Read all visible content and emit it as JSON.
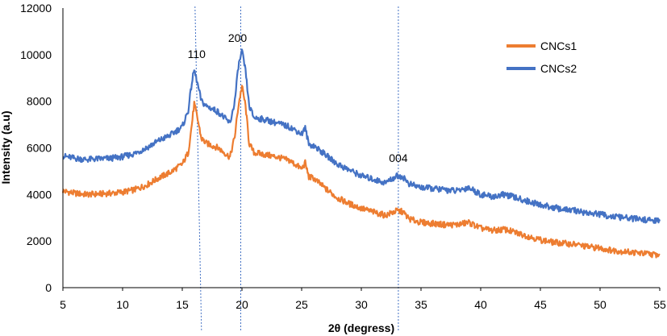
{
  "chart_data": {
    "type": "line",
    "xlabel": "2θ (degress)",
    "ylabel": "Intensity (a.u)",
    "xlim": [
      5,
      55
    ],
    "ylim": [
      0,
      12000
    ],
    "x_ticks": [
      5,
      10,
      15,
      20,
      25,
      30,
      35,
      40,
      45,
      50,
      55
    ],
    "y_ticks": [
      0,
      2000,
      4000,
      6000,
      8000,
      10000,
      12000
    ],
    "grid": false,
    "legend_position": "top-right",
    "series": [
      {
        "name": "CNCs1",
        "color": "#ED7D31",
        "points": [
          [
            5,
            4150
          ],
          [
            6,
            4050
          ],
          [
            7,
            4000
          ],
          [
            8,
            4020
          ],
          [
            9,
            4050
          ],
          [
            10,
            4100
          ],
          [
            11,
            4200
          ],
          [
            12,
            4400
          ],
          [
            13,
            4700
          ],
          [
            14,
            4950
          ],
          [
            15,
            5300
          ],
          [
            15.5,
            5800
          ],
          [
            15.8,
            7000
          ],
          [
            16,
            7900
          ],
          [
            16.3,
            7200
          ],
          [
            16.6,
            6400
          ],
          [
            17,
            6200
          ],
          [
            18,
            6000
          ],
          [
            19,
            5600
          ],
          [
            19.4,
            6500
          ],
          [
            19.7,
            7800
          ],
          [
            20,
            8650
          ],
          [
            20.3,
            7800
          ],
          [
            20.6,
            6200
          ],
          [
            21,
            5800
          ],
          [
            22,
            5700
          ],
          [
            23,
            5600
          ],
          [
            24,
            5450
          ],
          [
            25,
            5100
          ],
          [
            25.3,
            5350
          ],
          [
            25.6,
            4750
          ],
          [
            26,
            4700
          ],
          [
            27,
            4250
          ],
          [
            28,
            3850
          ],
          [
            29,
            3600
          ],
          [
            30,
            3400
          ],
          [
            31,
            3250
          ],
          [
            32,
            3100
          ],
          [
            33,
            3300
          ],
          [
            33.5,
            3250
          ],
          [
            34,
            2950
          ],
          [
            35,
            2800
          ],
          [
            36,
            2750
          ],
          [
            37,
            2700
          ],
          [
            38,
            2700
          ],
          [
            39,
            2800
          ],
          [
            40,
            2550
          ],
          [
            41,
            2450
          ],
          [
            42,
            2500
          ],
          [
            43,
            2350
          ],
          [
            44,
            2200
          ],
          [
            45,
            2050
          ],
          [
            46,
            1950
          ],
          [
            47,
            1900
          ],
          [
            48,
            1850
          ],
          [
            49,
            1750
          ],
          [
            50,
            1700
          ],
          [
            51,
            1600
          ],
          [
            52,
            1550
          ],
          [
            53,
            1500
          ],
          [
            54,
            1450
          ],
          [
            55,
            1400
          ]
        ]
      },
      {
        "name": "CNCs2",
        "color": "#4472C4",
        "points": [
          [
            5,
            5650
          ],
          [
            6,
            5550
          ],
          [
            7,
            5500
          ],
          [
            8,
            5530
          ],
          [
            9,
            5550
          ],
          [
            10,
            5620
          ],
          [
            11,
            5750
          ],
          [
            12,
            6000
          ],
          [
            13,
            6300
          ],
          [
            14,
            6550
          ],
          [
            15,
            6900
          ],
          [
            15.5,
            7600
          ],
          [
            15.8,
            8800
          ],
          [
            16,
            9350
          ],
          [
            16.3,
            8700
          ],
          [
            16.6,
            8000
          ],
          [
            17,
            7800
          ],
          [
            18,
            7550
          ],
          [
            19,
            7050
          ],
          [
            19.4,
            8000
          ],
          [
            19.7,
            9500
          ],
          [
            20,
            10150
          ],
          [
            20.3,
            9300
          ],
          [
            20.6,
            7800
          ],
          [
            21,
            7300
          ],
          [
            22,
            7200
          ],
          [
            23,
            7050
          ],
          [
            24,
            6900
          ],
          [
            25,
            6600
          ],
          [
            25.3,
            6850
          ],
          [
            25.6,
            6150
          ],
          [
            26,
            6100
          ],
          [
            27,
            5700
          ],
          [
            28,
            5300
          ],
          [
            29,
            5050
          ],
          [
            30,
            4800
          ],
          [
            31,
            4650
          ],
          [
            32,
            4500
          ],
          [
            33,
            4800
          ],
          [
            33.5,
            4750
          ],
          [
            34,
            4450
          ],
          [
            35,
            4300
          ],
          [
            36,
            4250
          ],
          [
            37,
            4200
          ],
          [
            38,
            4150
          ],
          [
            39,
            4300
          ],
          [
            40,
            4000
          ],
          [
            41,
            3900
          ],
          [
            42,
            4000
          ],
          [
            43,
            3850
          ],
          [
            44,
            3700
          ],
          [
            45,
            3550
          ],
          [
            46,
            3450
          ],
          [
            47,
            3350
          ],
          [
            48,
            3300
          ],
          [
            49,
            3200
          ],
          [
            50,
            3150
          ],
          [
            51,
            3050
          ],
          [
            52,
            3000
          ],
          [
            53,
            2950
          ],
          [
            54,
            2900
          ],
          [
            55,
            2850
          ]
        ]
      }
    ],
    "peak_markers": [
      {
        "label": "110",
        "x": 16.2
      },
      {
        "label": "200",
        "x": 19.9
      },
      {
        "label": "004",
        "x": 33.1
      }
    ]
  }
}
